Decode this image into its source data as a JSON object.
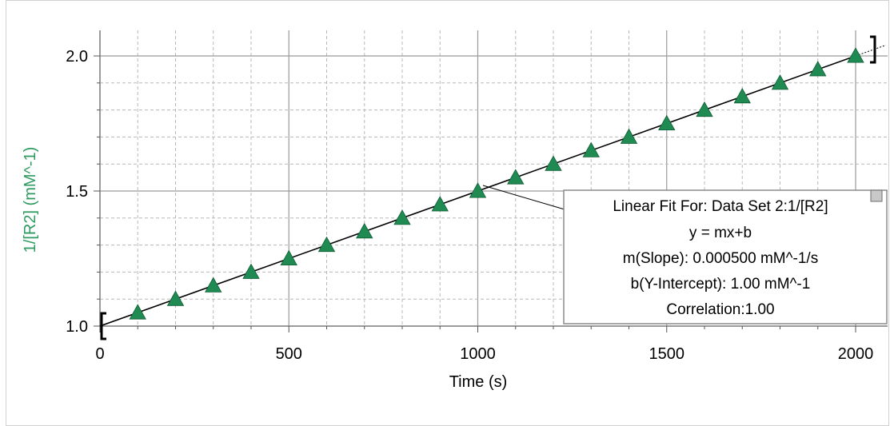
{
  "colors": {
    "series": "#1f8a52",
    "ylabel": "#2e9a60",
    "grid_major": "#9a9a9a",
    "grid_minor": "#b8b8b8",
    "fit_line": "#000000",
    "background": "#ffffff"
  },
  "fit_box": {
    "line1": "Linear Fit For:  Data Set 2:1/[R2]",
    "line2": "y = mx+b",
    "line3": "m(Slope): 0.000500 mM^-1/s",
    "line4": "b(Y-Intercept): 1.00 mM^-1",
    "line5": "Correlation:1.00"
  },
  "chart_data": {
    "type": "scatter",
    "title": "",
    "xlabel": "Time (s)",
    "ylabel": "1/[R2] (mM^-1)",
    "xlim": [
      0,
      2080
    ],
    "ylim": [
      0.98,
      2.1
    ],
    "x_ticks": [
      0,
      500,
      1000,
      1500,
      2000
    ],
    "y_ticks": [
      1.0,
      1.5,
      2.0
    ],
    "x_tick_labels": [
      "0",
      "500",
      "1000",
      "1500",
      "2000"
    ],
    "y_tick_labels": [
      "1.0",
      "1.5",
      "2.0"
    ],
    "grid": true,
    "series": [
      {
        "marker": "triangle",
        "x": [
          100,
          200,
          300,
          400,
          500,
          600,
          700,
          800,
          900,
          1000,
          1100,
          1200,
          1300,
          1400,
          1500,
          1600,
          1700,
          1800,
          1900,
          2000
        ],
        "y": [
          1.05,
          1.1,
          1.15,
          1.2,
          1.25,
          1.3,
          1.35,
          1.4,
          1.45,
          1.5,
          1.55,
          1.6,
          1.65,
          1.7,
          1.75,
          1.8,
          1.85,
          1.9,
          1.95,
          2.0
        ]
      }
    ],
    "fit": {
      "type": "linear",
      "slope": 0.0005,
      "intercept": 1.0,
      "range": [
        0,
        2000
      ]
    }
  }
}
